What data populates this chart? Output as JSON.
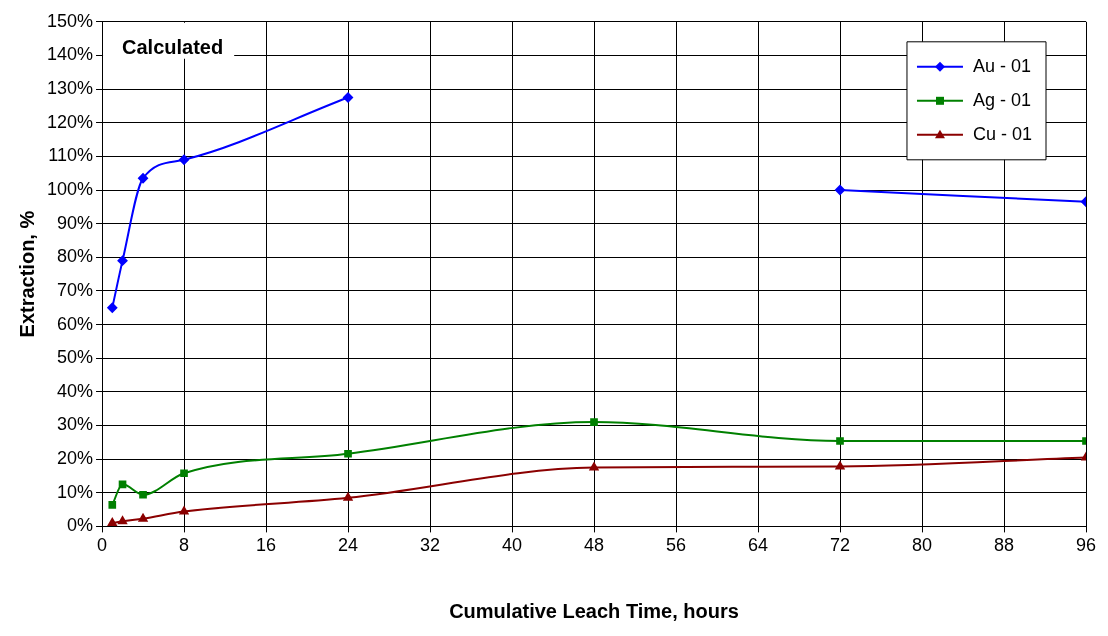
{
  "chart_data": {
    "type": "line",
    "xlabel": "Cumulative Leach Time, hours",
    "ylabel": "Extraction, %",
    "annotations": [
      "Calculated"
    ],
    "xlim": [
      0,
      96
    ],
    "xticks": [
      0,
      8,
      16,
      24,
      32,
      40,
      48,
      56,
      64,
      72,
      80,
      88,
      96
    ],
    "ylim": [
      0,
      150
    ],
    "yticks": [
      {
        "value": 0,
        "label": "0%"
      },
      {
        "value": 10,
        "label": "10%"
      },
      {
        "value": 20,
        "label": "20%"
      },
      {
        "value": 30,
        "label": "30%"
      },
      {
        "value": 40,
        "label": "40%"
      },
      {
        "value": 50,
        "label": "50%"
      },
      {
        "value": 60,
        "label": "60%"
      },
      {
        "value": 70,
        "label": "70%"
      },
      {
        "value": 80,
        "label": "80%"
      },
      {
        "value": 90,
        "label": "90%"
      },
      {
        "value": 100,
        "label": "100%"
      },
      {
        "value": 110,
        "label": "110%"
      },
      {
        "value": 120,
        "label": "120%"
      },
      {
        "value": 130,
        "label": "130%"
      },
      {
        "value": 140,
        "label": "140%"
      },
      {
        "value": 150,
        "label": "150%"
      }
    ],
    "x": [
      1,
      2,
      4,
      8,
      24,
      48,
      72,
      96
    ],
    "grid": true,
    "legend": "top right",
    "line_style": "solid",
    "series": [
      {
        "name": "Au - 01",
        "color": "#0000ff",
        "marker": "diamond",
        "values": [
          65,
          79,
          103.5,
          109,
          127.5,
          null,
          100,
          96.5
        ]
      },
      {
        "name": "Ag - 01",
        "color": "#008000",
        "marker": "square",
        "values": [
          6.4,
          12.5,
          9.4,
          15.8,
          21.6,
          31,
          25.4,
          25.4
        ]
      },
      {
        "name": "Cu - 01",
        "color": "#8b0000",
        "marker": "triangle",
        "values": [
          1,
          1.5,
          2.3,
          4.4,
          8.5,
          17.5,
          17.8,
          20.5
        ]
      }
    ]
  }
}
